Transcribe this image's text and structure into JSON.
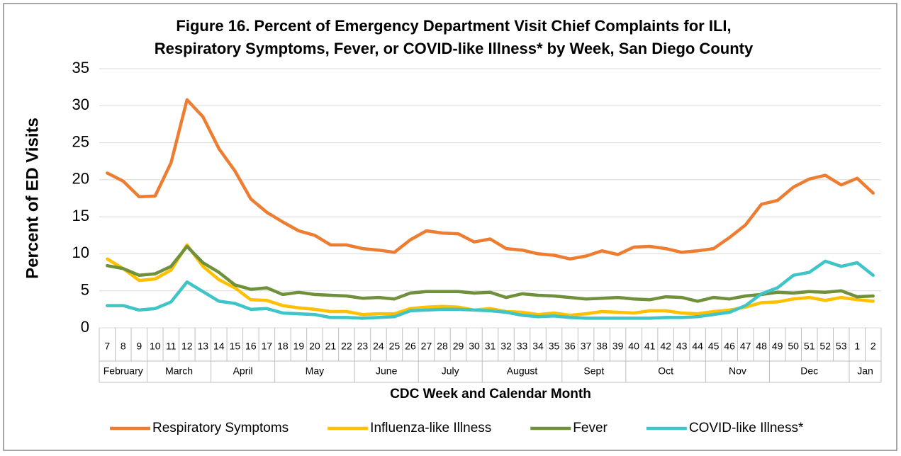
{
  "chart_data": {
    "type": "line",
    "title": [
      "Figure 16. Percent of Emergency Department Visit Chief Complaints for ILI,",
      "Respiratory Symptoms, Fever, or COVID-like Illness* by Week, San Diego County"
    ],
    "y_label": "Percent of ED Visits",
    "x_label": "CDC Week and Calendar Month",
    "categories": [
      "7",
      "8",
      "9",
      "10",
      "11",
      "12",
      "13",
      "14",
      "15",
      "16",
      "17",
      "18",
      "19",
      "20",
      "21",
      "22",
      "23",
      "24",
      "25",
      "26",
      "27",
      "28",
      "29",
      "30",
      "31",
      "32",
      "33",
      "34",
      "35",
      "36",
      "37",
      "38",
      "39",
      "40",
      "41",
      "42",
      "43",
      "44",
      "45",
      "46",
      "47",
      "48",
      "49",
      "50",
      "51",
      "52",
      "53",
      "1",
      "2"
    ],
    "months": [
      "February",
      "February",
      "February",
      "March",
      "March",
      "March",
      "March",
      "April",
      "April",
      "April",
      "April",
      "May",
      "May",
      "May",
      "May",
      "May",
      "June",
      "June",
      "June",
      "June",
      "July",
      "July",
      "July",
      "July",
      "August",
      "August",
      "August",
      "August",
      "August",
      "Sept",
      "Sept",
      "Sept",
      "Sept",
      "Oct",
      "Oct",
      "Oct",
      "Oct",
      "Oct",
      "Nov",
      "Nov",
      "Nov",
      "Nov",
      "Dec",
      "Dec",
      "Dec",
      "Dec",
      "Dec",
      "Jan",
      "Jan"
    ],
    "series": [
      {
        "name": "Respiratory Symptoms",
        "color": "#ed7d31",
        "values": [
          20.9,
          19.8,
          17.7,
          17.8,
          22.3,
          30.8,
          28.5,
          24.2,
          21.2,
          17.4,
          15.6,
          14.3,
          13.1,
          12.5,
          11.2,
          11.2,
          10.7,
          10.5,
          10.2,
          11.9,
          13.1,
          12.8,
          12.7,
          11.6,
          12.0,
          10.7,
          10.5,
          10.0,
          9.8,
          9.3,
          9.7,
          10.4,
          9.9,
          10.9,
          11.0,
          10.7,
          10.2,
          10.4,
          10.7,
          12.2,
          13.9,
          16.7,
          17.2,
          19.0,
          20.1,
          20.6,
          19.3,
          20.2,
          18.2
        ]
      },
      {
        "name": "Influenza-like Illness",
        "color": "#ffc000",
        "values": [
          9.3,
          8.0,
          6.4,
          6.6,
          7.8,
          11.2,
          8.3,
          6.5,
          5.4,
          3.8,
          3.7,
          3.0,
          2.7,
          2.5,
          2.2,
          2.2,
          1.8,
          1.9,
          1.9,
          2.6,
          2.8,
          2.9,
          2.8,
          2.4,
          2.6,
          2.2,
          2.1,
          1.8,
          2.0,
          1.7,
          1.9,
          2.2,
          2.1,
          2.0,
          2.3,
          2.3,
          2.0,
          1.9,
          2.2,
          2.4,
          2.8,
          3.4,
          3.5,
          3.9,
          4.1,
          3.7,
          4.1,
          3.8,
          3.6
        ]
      },
      {
        "name": "Fever",
        "color": "#70913c",
        "values": [
          8.4,
          8.0,
          7.1,
          7.3,
          8.3,
          11.0,
          8.8,
          7.5,
          5.8,
          5.2,
          5.4,
          4.5,
          4.8,
          4.5,
          4.4,
          4.3,
          4.0,
          4.1,
          3.9,
          4.7,
          4.9,
          4.9,
          4.9,
          4.7,
          4.8,
          4.1,
          4.6,
          4.4,
          4.3,
          4.1,
          3.9,
          4.0,
          4.1,
          3.9,
          3.8,
          4.2,
          4.1,
          3.6,
          4.1,
          3.9,
          4.3,
          4.5,
          4.8,
          4.7,
          4.9,
          4.8,
          5.0,
          4.2,
          4.3
        ]
      },
      {
        "name": "COVID-like Illness*",
        "color": "#3fc5c8",
        "values": [
          3.0,
          3.0,
          2.4,
          2.6,
          3.5,
          6.2,
          4.9,
          3.6,
          3.3,
          2.5,
          2.6,
          2.0,
          1.9,
          1.8,
          1.4,
          1.4,
          1.3,
          1.4,
          1.5,
          2.3,
          2.4,
          2.5,
          2.5,
          2.4,
          2.3,
          2.1,
          1.7,
          1.5,
          1.6,
          1.4,
          1.3,
          1.3,
          1.3,
          1.3,
          1.3,
          1.4,
          1.4,
          1.5,
          1.8,
          2.1,
          3.0,
          4.6,
          5.4,
          7.1,
          7.5,
          9.0,
          8.3,
          8.8,
          7.1
        ]
      }
    ],
    "ylim": [
      0,
      35
    ],
    "yticks": [
      0,
      5,
      10,
      15,
      20,
      25,
      30,
      35
    ],
    "grid": true,
    "legend": "bottom"
  }
}
